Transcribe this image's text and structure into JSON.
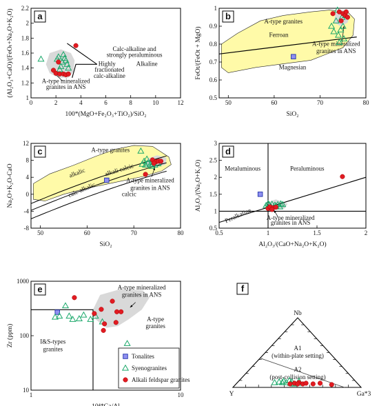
{
  "chart_data": [
    {
      "id": "a",
      "type": "scatter",
      "panel_label": "a",
      "xlabel": "100*(MgO+Fe₂O₃+TiO₂)/SiO₂",
      "ylabel": "(Al₂O₃+CaO)/(FeOₜ+Na₂O+K₂O)",
      "xlim": [
        0,
        12
      ],
      "ylim": [
        1.0,
        2.2
      ],
      "xticks": [
        0,
        2,
        4,
        6,
        8,
        10,
        12
      ],
      "yticks": [
        1.0,
        1.2,
        1.4,
        1.6,
        1.8,
        2.0,
        2.2
      ],
      "field_labels": [
        "Calc-alkaline and",
        "strongly peraluminous",
        "Alkaline",
        "Highly",
        "fractionated",
        "calc-alkaline",
        "A-type mineralized",
        "granites in ANS"
      ],
      "series": [
        {
          "name": "Syenogranites",
          "marker": "triangle",
          "points": [
            [
              0.8,
              1.52
            ],
            [
              2.2,
              1.55
            ],
            [
              2.6,
              1.58
            ],
            [
              2.7,
              1.53
            ],
            [
              2.8,
              1.5
            ],
            [
              2.5,
              1.48
            ],
            [
              2.9,
              1.45
            ],
            [
              2.4,
              1.42
            ],
            [
              3.0,
              1.4
            ],
            [
              2.3,
              1.38
            ],
            [
              2.1,
              1.52
            ]
          ]
        },
        {
          "name": "Alkali feldspar granites",
          "marker": "circle",
          "points": [
            [
              1.8,
              1.37
            ],
            [
              2.0,
              1.33
            ],
            [
              2.3,
              1.32
            ],
            [
              2.6,
              1.32
            ],
            [
              2.8,
              1.31
            ],
            [
              3.0,
              1.32
            ],
            [
              2.2,
              1.48
            ],
            [
              3.6,
              1.7
            ]
          ]
        }
      ]
    },
    {
      "id": "b",
      "type": "scatter",
      "panel_label": "b",
      "xlabel": "SiO₂",
      "ylabel": "FeOt/(FeOt + MgO)",
      "xlim": [
        48,
        80
      ],
      "ylim": [
        0.5,
        1.0
      ],
      "xticks": [
        50,
        60,
        70,
        80
      ],
      "yticks": [
        0.5,
        0.6,
        0.7,
        0.8,
        0.9,
        1.0
      ],
      "field_labels": [
        "A-type granites",
        "Ferroan",
        "Magnesian",
        "A-type mineralized",
        "granites in ANS"
      ],
      "series": [
        {
          "name": "Tonalites",
          "marker": "square",
          "points": [
            [
              64.2,
              0.73
            ]
          ]
        },
        {
          "name": "Syenogranites",
          "marker": "triangle",
          "points": [
            [
              72.5,
              0.9
            ],
            [
              73.0,
              0.87
            ],
            [
              73.5,
              0.93
            ],
            [
              74.0,
              0.85
            ],
            [
              74.5,
              0.88
            ],
            [
              75.0,
              0.9
            ],
            [
              73.8,
              0.99
            ],
            [
              74.8,
              0.95
            ],
            [
              75.5,
              0.96
            ],
            [
              74.2,
              0.81
            ],
            [
              75.2,
              0.83
            ]
          ]
        },
        {
          "name": "Alkali feldspar granites",
          "marker": "circle",
          "points": [
            [
              72.8,
              0.97
            ],
            [
              74.2,
              0.98
            ],
            [
              75.0,
              0.97
            ],
            [
              75.5,
              0.96
            ],
            [
              76.0,
              0.95
            ],
            [
              74.6,
              0.93
            ],
            [
              75.7,
              0.98
            ]
          ]
        }
      ]
    },
    {
      "id": "c",
      "type": "scatter",
      "panel_label": "c",
      "xlabel": "SiO₂",
      "ylabel": "Na₂O+K₂O-CaO",
      "xlim": [
        48,
        80
      ],
      "ylim": [
        -8,
        12
      ],
      "xticks": [
        50,
        60,
        70,
        80
      ],
      "yticks": [
        -8,
        -4,
        0,
        4,
        8,
        12
      ],
      "field_labels": [
        "A-type granites",
        "alkalic",
        "alkali calcic",
        "calc-alkalic",
        "calcic",
        "A-type mineralized",
        "granites in ANS"
      ],
      "series": [
        {
          "name": "Tonalites",
          "marker": "square",
          "points": [
            [
              64.2,
              3.3
            ]
          ]
        },
        {
          "name": "Syenogranites",
          "marker": "triangle",
          "points": [
            [
              71.5,
              10.2
            ],
            [
              72.5,
              6.9
            ],
            [
              73.0,
              7.4
            ],
            [
              73.5,
              7.1
            ],
            [
              74.0,
              7.5
            ],
            [
              74.5,
              6.9
            ],
            [
              75.2,
              7.2
            ],
            [
              72.2,
              7.8
            ],
            [
              73.8,
              6.6
            ],
            [
              71.8,
              7.1
            ],
            [
              72.8,
              8.3
            ]
          ]
        },
        {
          "name": "Alkali feldspar granites",
          "marker": "circle",
          "points": [
            [
              72.5,
              4.7
            ],
            [
              74.0,
              8.1
            ],
            [
              74.8,
              7.7
            ],
            [
              75.3,
              7.8
            ],
            [
              75.8,
              7.8
            ],
            [
              74.3,
              7.3
            ]
          ]
        }
      ]
    },
    {
      "id": "d",
      "type": "scatter",
      "panel_label": "d",
      "xlabel": "Al₂O₃/(CaO+Na₂O+K₂O)",
      "ylabel": "Al₂O₃/(Na₂O+K₂O)",
      "xlim": [
        0.5,
        2.0
      ],
      "ylim": [
        0.5,
        3.0
      ],
      "xticks": [
        0.5,
        1.0,
        1.5,
        2.0
      ],
      "yticks": [
        0.5,
        1.0,
        1.5,
        2.0,
        2.5,
        3.0
      ],
      "field_labels": [
        "Metaluminous",
        "Peraluminous",
        "Peralkaline",
        "A-type mineralized",
        "granites in ANS"
      ],
      "series": [
        {
          "name": "Tonalites",
          "marker": "square",
          "points": [
            [
              0.92,
              1.5
            ]
          ]
        },
        {
          "name": "Syenogranites",
          "marker": "triangle",
          "points": [
            [
              0.98,
              1.17
            ],
            [
              1.01,
              1.2
            ],
            [
              1.04,
              1.21
            ],
            [
              1.07,
              1.18
            ],
            [
              1.1,
              1.2
            ],
            [
              1.13,
              1.22
            ],
            [
              1.03,
              1.13
            ],
            [
              1.08,
              1.15
            ],
            [
              1.12,
              1.13
            ],
            [
              1.0,
              1.22
            ],
            [
              1.15,
              1.2
            ]
          ]
        },
        {
          "name": "Alkali feldspar granites",
          "marker": "circle",
          "points": [
            [
              1.0,
              1.08
            ],
            [
              1.02,
              1.13
            ],
            [
              1.05,
              1.1
            ],
            [
              1.08,
              1.12
            ],
            [
              1.04,
              1.05
            ],
            [
              1.76,
              2.02
            ]
          ]
        }
      ]
    },
    {
      "id": "e",
      "type": "scatter",
      "panel_label": "e",
      "xlabel": "10⁴*Ga/Al",
      "ylabel": "Zr (ppm)",
      "xlim": [
        1,
        10
      ],
      "ylim": [
        10,
        1000
      ],
      "xscale": "log",
      "yscale": "log",
      "xticks": [
        1,
        10
      ],
      "yticks": [
        10,
        100,
        1000
      ],
      "field_labels": [
        "A-type mineralized",
        "granites in ANS",
        "A-type",
        "granites",
        "I&S-types",
        "granites"
      ],
      "legend": [
        "Tonalites",
        "Syenogranites",
        "Alkali feldspar granites"
      ],
      "legend_position": "bottom-right",
      "series": [
        {
          "name": "Tonalites",
          "marker": "square",
          "points": [
            [
              1.5,
              270
            ]
          ]
        },
        {
          "name": "Syenogranites",
          "marker": "triangle",
          "points": [
            [
              1.55,
              230
            ],
            [
              1.7,
              355
            ],
            [
              1.8,
              230
            ],
            [
              1.9,
              200
            ],
            [
              2.1,
              205
            ],
            [
              2.25,
              240
            ],
            [
              1.45,
              220
            ],
            [
              2.5,
              200
            ],
            [
              2.7,
              230
            ],
            [
              4.4,
              72
            ],
            [
              3.0,
              180
            ]
          ]
        },
        {
          "name": "Alkali feldspar granites",
          "marker": "circle",
          "points": [
            [
              1.95,
              500
            ],
            [
              2.65,
              255
            ],
            [
              2.95,
              305
            ],
            [
              3.1,
              165
            ],
            [
              3.05,
              125
            ],
            [
              3.5,
              430
            ],
            [
              3.75,
              275
            ],
            [
              3.7,
              175
            ],
            [
              4.0,
              275
            ]
          ]
        }
      ]
    },
    {
      "id": "f",
      "type": "ternary",
      "panel_label": "f",
      "apices": [
        "Nb",
        "Y",
        "Ga*3"
      ],
      "field_labels": [
        "A1",
        "(within-plate setting)",
        "A2",
        "(post-collision setting)"
      ],
      "series": [
        {
          "name": "Syenogranites",
          "marker": "triangle",
          "points": [
            [
              0.07,
              0.64,
              0.29
            ],
            [
              0.08,
              0.6,
              0.32
            ],
            [
              0.09,
              0.56,
              0.35
            ],
            [
              0.07,
              0.55,
              0.38
            ],
            [
              0.06,
              0.52,
              0.42
            ],
            [
              0.08,
              0.5,
              0.42
            ],
            [
              0.1,
              0.51,
              0.39
            ],
            [
              0.06,
              0.46,
              0.48
            ],
            [
              0.09,
              0.44,
              0.47
            ],
            [
              0.07,
              0.58,
              0.35
            ],
            [
              0.05,
              0.5,
              0.45
            ]
          ]
        },
        {
          "name": "Alkali feldspar granites",
          "marker": "circle",
          "points": [
            [
              0.05,
              0.53,
              0.42
            ],
            [
              0.06,
              0.49,
              0.45
            ],
            [
              0.07,
              0.45,
              0.48
            ],
            [
              0.05,
              0.43,
              0.52
            ],
            [
              0.06,
              0.4,
              0.54
            ],
            [
              0.05,
              0.35,
              0.6
            ],
            [
              0.06,
              0.29,
              0.65
            ],
            [
              0.04,
              0.21,
              0.75
            ],
            [
              0.05,
              0.47,
              0.48
            ]
          ]
        }
      ]
    }
  ],
  "colors": {
    "tonalite": "#8f8ff0",
    "syenogranite": "#1aa86a",
    "feldspar": "#e11b22",
    "atype_field": "#fffaa8",
    "ans_field": "#d9d9d9"
  }
}
